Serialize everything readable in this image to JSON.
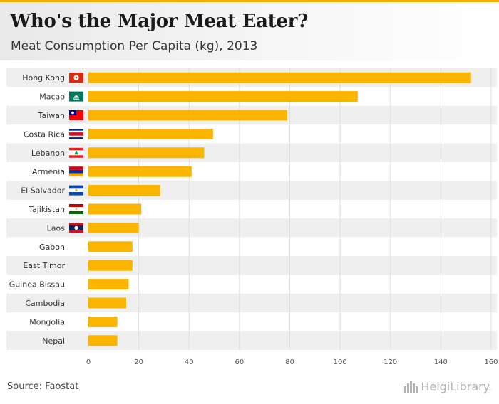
{
  "header": {
    "title": "Who's the Major Meat Eater?",
    "subtitle": "Meat Consumption Per Capita (kg), 2013"
  },
  "footer": {
    "source": "Source: Faostat",
    "brand": "HelgiLibrary."
  },
  "colors": {
    "bar": "#fbb400",
    "accent": "#f5b100",
    "band": "#efefef",
    "grid": "#dddddd"
  },
  "chart_data": {
    "type": "bar",
    "orientation": "horizontal",
    "title": "Who's the Major Meat Eater?",
    "subtitle": "Meat Consumption Per Capita (kg), 2013",
    "xlabel": "",
    "ylabel": "",
    "xlim": [
      0,
      160
    ],
    "ticks": [
      0,
      20,
      40,
      60,
      80,
      100,
      120,
      140,
      160
    ],
    "grid": true,
    "categories": [
      "Hong Kong",
      "Macao",
      "Taiwan",
      "Costa Rica",
      "Lebanon",
      "Armenia",
      "El Salvador",
      "Tajikistan",
      "Laos",
      "Gabon",
      "East Timor",
      "Guinea Bissau",
      "Cambodia",
      "Mongolia",
      "Nepal"
    ],
    "values": [
      152,
      107,
      79,
      49.5,
      46,
      41,
      28.5,
      21,
      20,
      17.5,
      17.5,
      16,
      15,
      11.5,
      11.5
    ],
    "flags": [
      "hk-flag",
      "mo-flag",
      "tw-flag",
      "cr-flag",
      "lb-flag",
      "am-flag",
      "sv-flag",
      "tj-flag",
      "la-flag",
      "",
      "",
      "",
      "",
      "",
      ""
    ]
  }
}
